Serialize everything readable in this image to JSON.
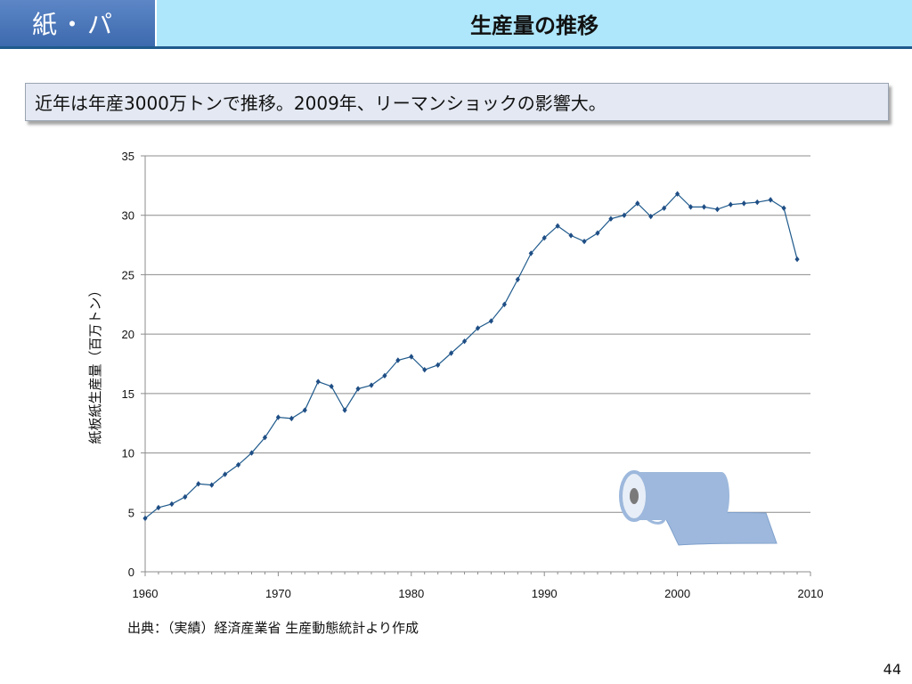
{
  "header": {
    "section_tag": "紙・パ",
    "title": "生産量の推移"
  },
  "summary": "近年は年産3000万トンで推移。2009年、リーマンショックの影響大。",
  "chart_data": {
    "type": "line",
    "title": "",
    "xlabel": "",
    "ylabel": "紙板紙生産量（百万トン）",
    "xlim": [
      1960,
      2010
    ],
    "ylim": [
      0,
      35
    ],
    "x_ticks": [
      1960,
      1970,
      1980,
      1990,
      2000,
      2010
    ],
    "y_ticks": [
      0,
      5,
      10,
      15,
      20,
      25,
      30,
      35
    ],
    "grid": true,
    "legend": "none",
    "series": [
      {
        "color": "#1f5a8c",
        "x": [
          1960,
          1961,
          1962,
          1963,
          1964,
          1965,
          1966,
          1967,
          1968,
          1969,
          1970,
          1971,
          1972,
          1973,
          1974,
          1975,
          1976,
          1977,
          1978,
          1979,
          1980,
          1981,
          1982,
          1983,
          1984,
          1985,
          1986,
          1987,
          1988,
          1989,
          1990,
          1991,
          1992,
          1993,
          1994,
          1995,
          1996,
          1997,
          1998,
          1999,
          2000,
          2001,
          2002,
          2003,
          2004,
          2005,
          2006,
          2007,
          2008,
          2009
        ],
        "y": [
          4.5,
          5.4,
          5.7,
          6.3,
          7.4,
          7.3,
          8.2,
          9.0,
          10.0,
          11.3,
          13.0,
          12.9,
          13.6,
          16.0,
          15.6,
          13.6,
          15.4,
          15.7,
          16.5,
          17.8,
          18.1,
          17.0,
          17.4,
          18.4,
          19.4,
          20.5,
          21.1,
          22.5,
          24.6,
          26.8,
          28.1,
          29.1,
          28.3,
          27.8,
          28.5,
          29.7,
          30.0,
          31.0,
          29.9,
          30.6,
          31.8,
          30.7,
          30.7,
          30.5,
          30.9,
          31.0,
          31.1,
          31.3,
          30.6,
          26.3
        ]
      }
    ]
  },
  "source_text": "出典：（実績）経済産業省 生産動態統計より作成",
  "page_number": "44",
  "illustration": {
    "name": "paper-roll-icon",
    "color": "#9db8dc",
    "outline": "#6d8fbf"
  }
}
